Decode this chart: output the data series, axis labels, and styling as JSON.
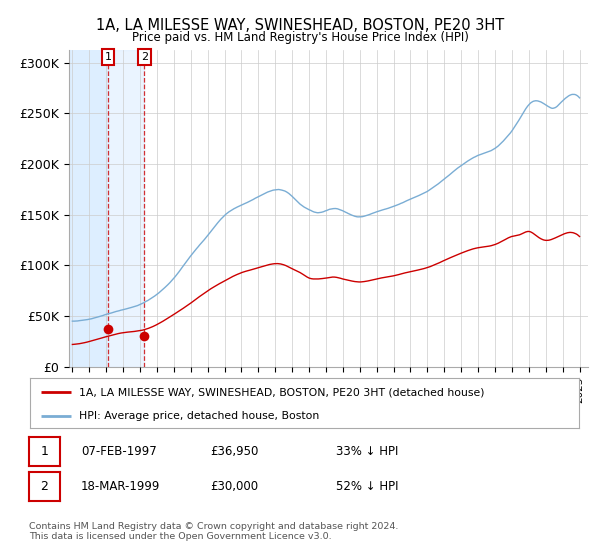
{
  "title1": "1A, LA MILESSE WAY, SWINESHEAD, BOSTON, PE20 3HT",
  "title2": "Price paid vs. HM Land Registry's House Price Index (HPI)",
  "ylabel_ticks": [
    "£0",
    "£50K",
    "£100K",
    "£150K",
    "£200K",
    "£250K",
    "£300K"
  ],
  "ytick_values": [
    0,
    50000,
    100000,
    150000,
    200000,
    250000,
    300000
  ],
  "ylim": [
    0,
    312000
  ],
  "xlim_start": 1994.8,
  "xlim_end": 2025.5,
  "hpi_color": "#7aadd4",
  "price_color": "#cc0000",
  "purchase1_x": 1997.1,
  "purchase1_y": 36950,
  "purchase2_x": 1999.25,
  "purchase2_y": 30000,
  "legend_line1": "1A, LA MILESSE WAY, SWINESHEAD, BOSTON, PE20 3HT (detached house)",
  "legend_line2": "HPI: Average price, detached house, Boston",
  "table_row1": [
    "1",
    "07-FEB-1997",
    "£36,950",
    "33% ↓ HPI"
  ],
  "table_row2": [
    "2",
    "18-MAR-1999",
    "£30,000",
    "52% ↓ HPI"
  ],
  "footer": "Contains HM Land Registry data © Crown copyright and database right 2024.\nThis data is licensed under the Open Government Licence v3.0.",
  "background_color": "#ffffff",
  "plot_bg_color": "#ffffff",
  "shade_color": "#ddeeff"
}
